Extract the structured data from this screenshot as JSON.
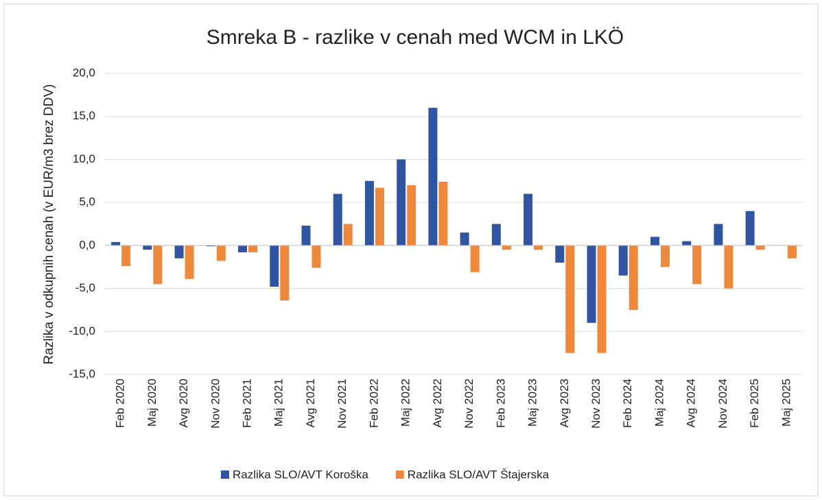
{
  "chart_data": {
    "type": "bar",
    "title": "Smreka B - razlike v cenah med WCM in LKÖ",
    "y_label": "Razlika v odkupnih cenah (v EUR/m3 brez DDV)",
    "categories": [
      "Feb 2020",
      "Maj 2020",
      "Avg 2020",
      "Nov 2020",
      "Feb 2021",
      "Maj 2021",
      "Avg 2021",
      "Nov 2021",
      "Feb 2022",
      "Maj 2022",
      "Avg 2022",
      "Nov 2022",
      "Feb 2023",
      "Maj 2023",
      "Avg 2023",
      "Nov 2023",
      "Feb 2024",
      "Maj 2024",
      "Avg 2024",
      "Nov 2024",
      "Feb 2025",
      "Maj 2025"
    ],
    "series": [
      {
        "name": "Razlika SLO/AVT Koroška",
        "color": "#2f55a2",
        "values": [
          0.4,
          -0.5,
          -1.5,
          -0.1,
          -0.8,
          -4.8,
          2.3,
          6.0,
          7.5,
          10.0,
          16.0,
          1.5,
          2.5,
          6.0,
          -2.0,
          -9.0,
          -3.5,
          1.0,
          0.5,
          2.5,
          4.0,
          null
        ]
      },
      {
        "name": "Razlika SLO/AVT Štajerska",
        "color": "#f0883a",
        "values": [
          -2.4,
          -4.5,
          -3.9,
          -1.8,
          -0.8,
          -6.4,
          -2.6,
          2.5,
          6.7,
          7.0,
          7.4,
          -3.1,
          -0.5,
          -0.5,
          -12.5,
          -12.5,
          -7.5,
          -2.5,
          -4.5,
          -5.0,
          -0.5,
          -1.5
        ]
      }
    ],
    "ylim": [
      -15,
      20
    ],
    "yticks": [
      {
        "value": -15,
        "label": "-15,0"
      },
      {
        "value": -10,
        "label": "-10,0"
      },
      {
        "value": -5,
        "label": "-5,0"
      },
      {
        "value": 0,
        "label": "0,0"
      },
      {
        "value": 5,
        "label": "5,0"
      },
      {
        "value": 10,
        "label": "10,0"
      },
      {
        "value": 15,
        "label": "15,0"
      },
      {
        "value": 20,
        "label": "20,0"
      }
    ],
    "grid": true
  }
}
